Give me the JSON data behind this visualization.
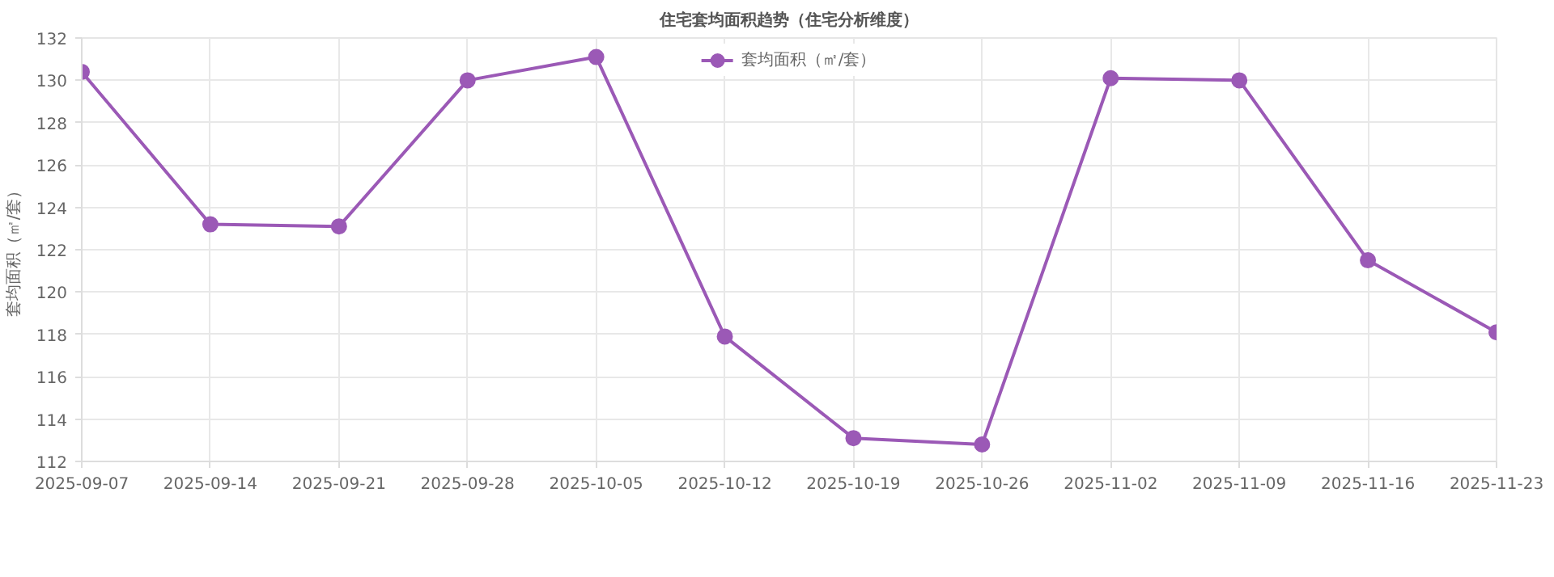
{
  "chart_data": {
    "type": "line",
    "title": "住宅套均面积趋势（住宅分析维度）",
    "ylabel": "套均面积（㎡/套）",
    "categories": [
      "2025-09-07",
      "2025-09-14",
      "2025-09-21",
      "2025-09-28",
      "2025-10-05",
      "2025-10-12",
      "2025-10-19",
      "2025-10-26",
      "2025-11-02",
      "2025-11-09",
      "2025-11-16",
      "2025-11-23"
    ],
    "series": [
      {
        "name": "套均面积（㎡/套）",
        "color": "#9b59b6",
        "values": [
          130.4,
          123.2,
          123.1,
          130.0,
          131.1,
          117.9,
          113.1,
          112.8,
          130.1,
          130.0,
          121.5,
          118.1
        ]
      }
    ],
    "ylim": [
      112,
      132
    ],
    "yticks": [
      112,
      114,
      116,
      118,
      120,
      122,
      124,
      126,
      128,
      130,
      132
    ],
    "grid": true,
    "legend": "top",
    "marker": "circle",
    "line_style": "solid"
  }
}
